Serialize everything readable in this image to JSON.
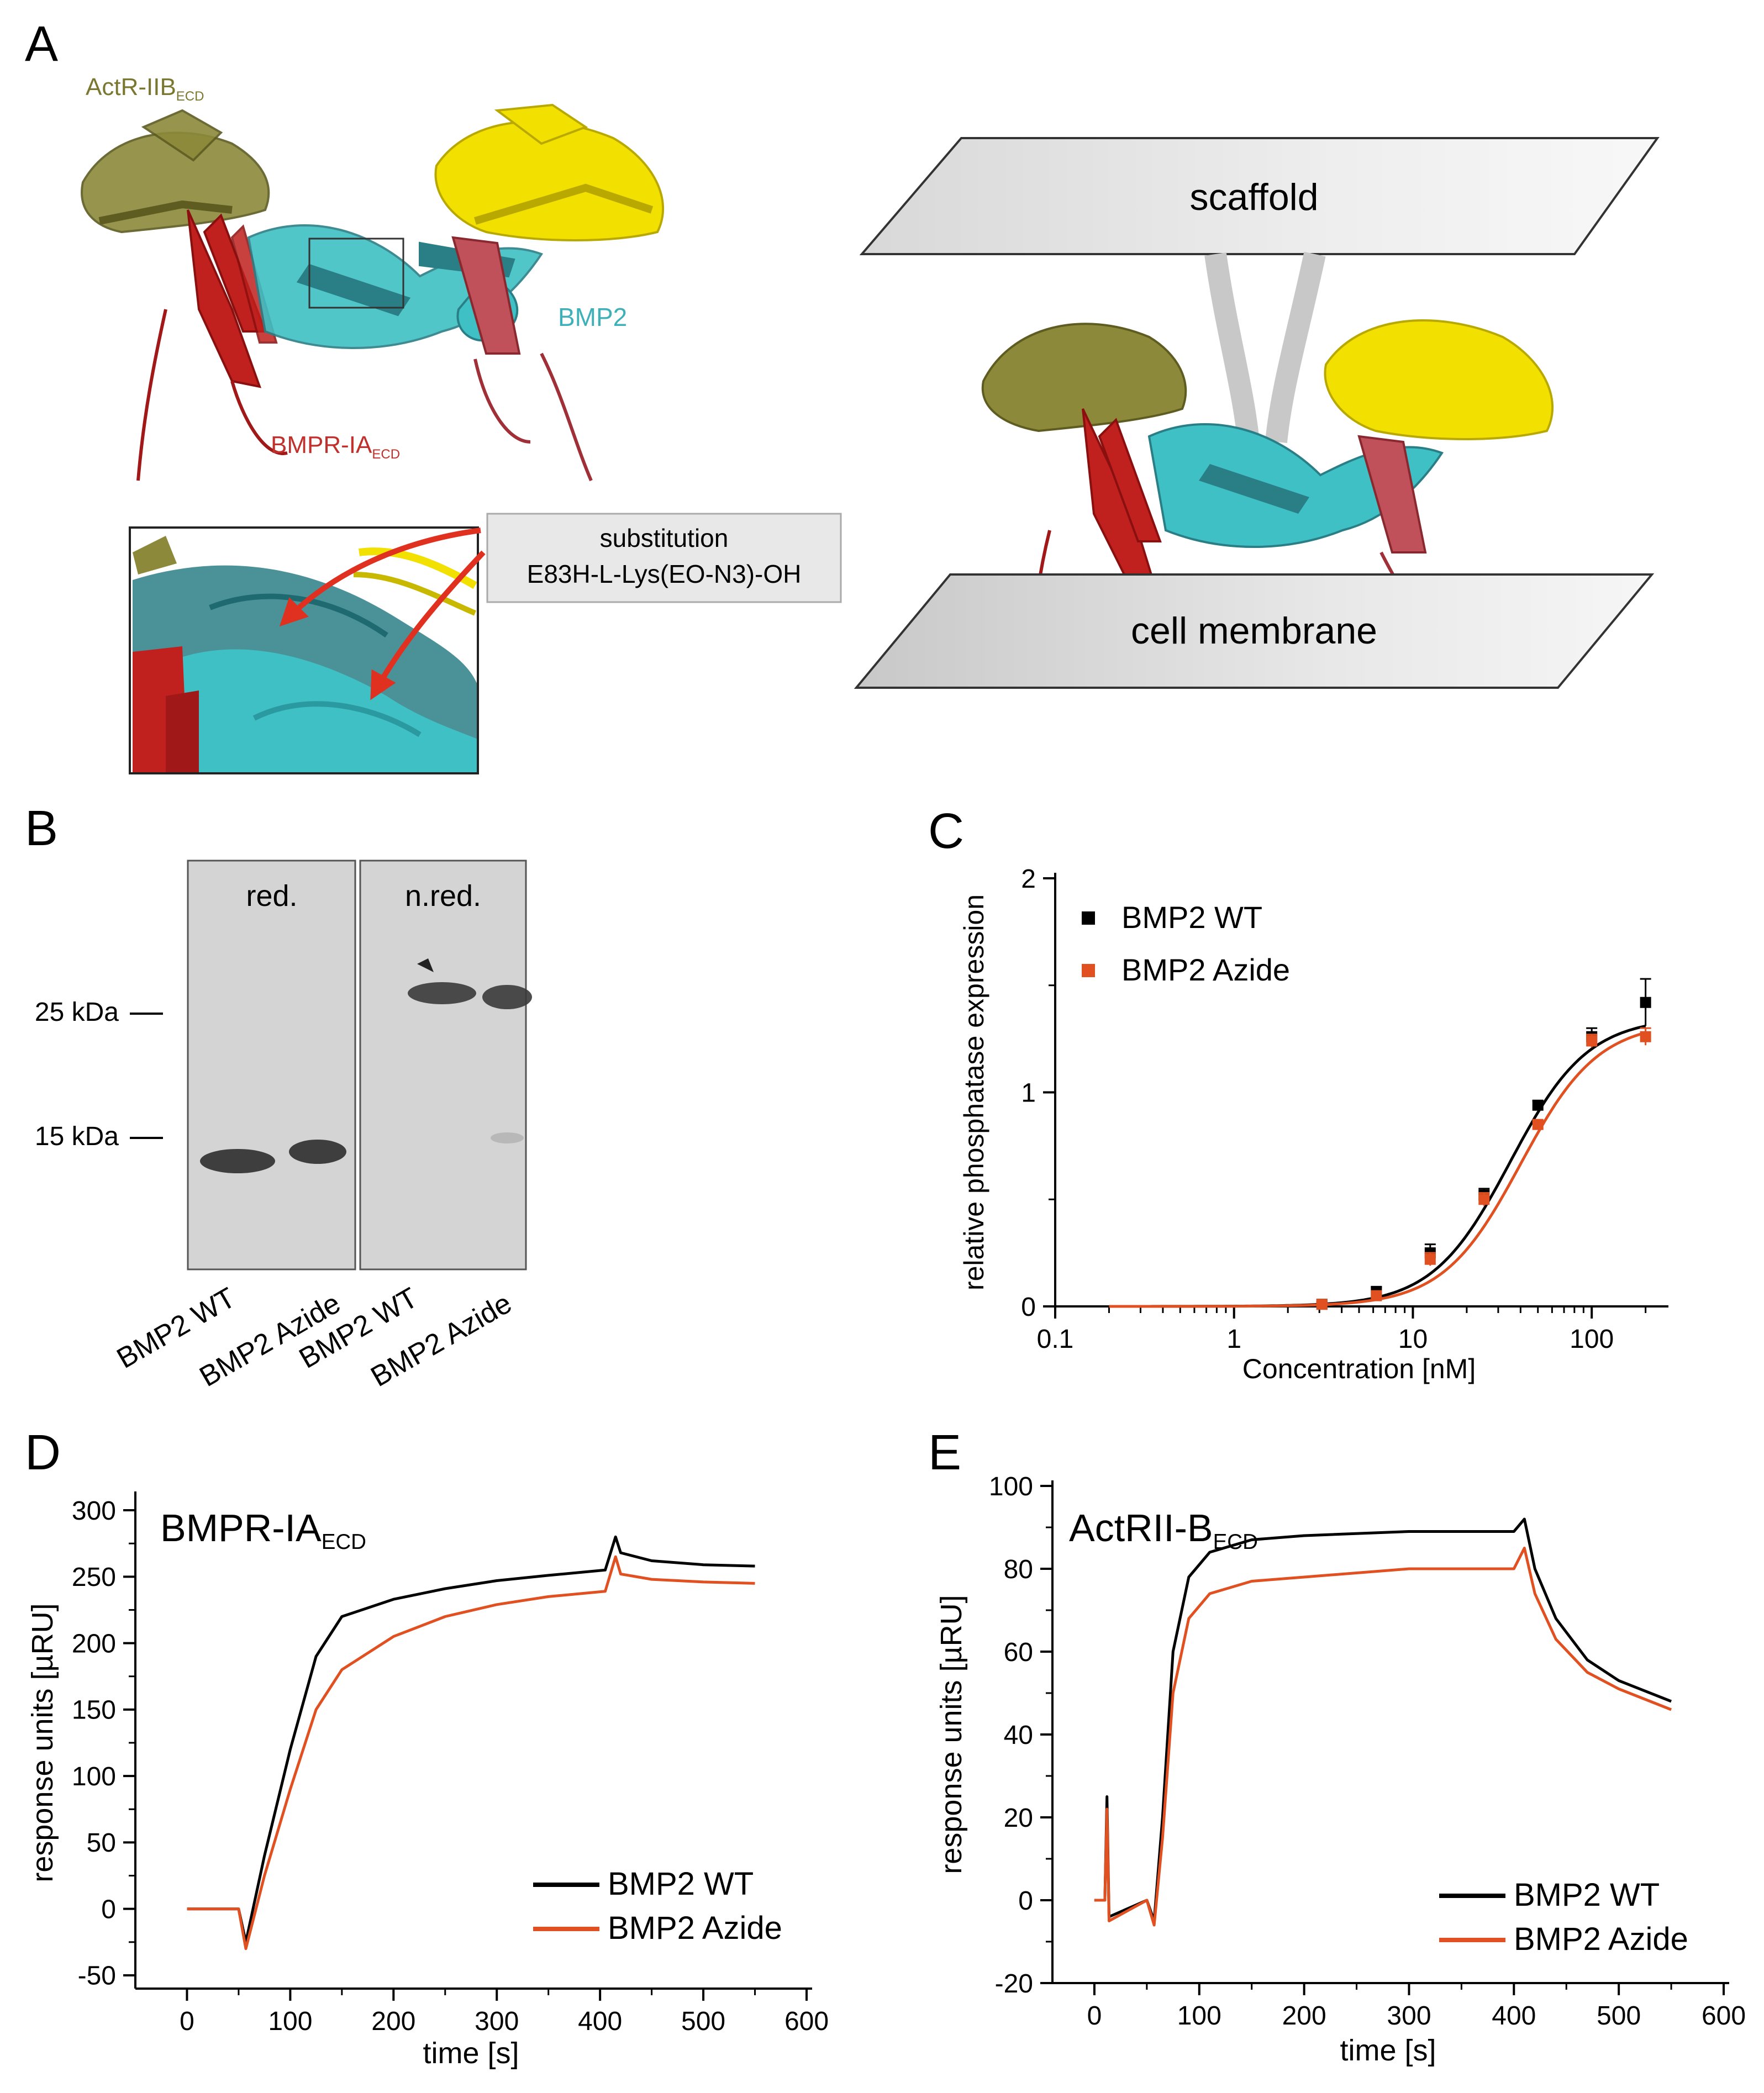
{
  "panels": {
    "A": {
      "letter": "A",
      "labels": {
        "actr_main": "ActR-IIB",
        "actr_main_sub": "ECD",
        "bmpr_main": "BMPR-IA",
        "bmpr_main_sub": "ECD",
        "bmp2": "BMP2",
        "substitution_line1": "substitution",
        "substitution_line2": "E83H-L-Lys(EO-N3)-OH",
        "scaffold": "scaffold",
        "cell_membrane": "cell membrane"
      },
      "colors": {
        "actr": "#8c8a3a",
        "bmp2": "#3fc0c4",
        "bmp2_dark": "#2a7f86",
        "bmpr": "#c0201e",
        "bmpr_light": "#c0505a",
        "partner": "#f2e000",
        "arrow": "#e03020"
      }
    },
    "B": {
      "letter": "B",
      "lane_group_labels": [
        "red.",
        "n.red."
      ],
      "mw_markers": [
        "25 kDa",
        "15 kDa"
      ],
      "lane_labels": [
        "BMP2 WT",
        "BMP2 Azide",
        "BMP2 WT",
        "BMP2 Azide"
      ]
    },
    "C": {
      "letter": "C",
      "chart_data": {
        "type": "scatter",
        "xscale": "log",
        "xlabel": "Concentration [nM]",
        "ylabel": "relative phosphatase expression",
        "xlim": [
          0.1,
          250
        ],
        "ylim": [
          0,
          2
        ],
        "xticks": [
          0.1,
          1,
          10,
          100
        ],
        "xtick_labels": [
          "0.1",
          "1",
          "10",
          "100"
        ],
        "yticks": [
          0,
          1,
          2
        ],
        "ytick_labels": [
          "0",
          "1",
          "2"
        ],
        "legend_position": "top-left",
        "series": [
          {
            "name": "BMP2 WT",
            "color": "#000000",
            "x": [
              3.1,
              6.25,
              12.5,
              25,
              50,
              100,
              200
            ],
            "y": [
              0.01,
              0.07,
              0.25,
              0.52,
              0.94,
              1.26,
              1.42
            ],
            "err": [
              0.01,
              0.02,
              0.04,
              0.03,
              0.02,
              0.04,
              0.11
            ],
            "fit": {
              "top": 1.35,
              "ec50": 35,
              "hill": 2.0
            }
          },
          {
            "name": "BMP2 Azide",
            "color": "#e05020",
            "x": [
              3.1,
              6.25,
              12.5,
              25,
              50,
              100,
              200
            ],
            "y": [
              0.01,
              0.05,
              0.22,
              0.5,
              0.85,
              1.24,
              1.26
            ],
            "err": [
              0.01,
              0.02,
              0.03,
              0.03,
              0.02,
              0.03,
              0.04
            ],
            "fit": {
              "top": 1.33,
              "ec50": 40,
              "hill": 2.0
            }
          }
        ]
      }
    },
    "D": {
      "letter": "D",
      "chart_data": {
        "type": "line",
        "title": "BMPR-IA",
        "title_sub": "ECD",
        "xlabel": "time [s]",
        "ylabel": "response units [µRU]",
        "xlim": [
          -50,
          600
        ],
        "ylim": [
          -60,
          310
        ],
        "xticks": [
          0,
          100,
          200,
          300,
          400,
          500,
          600
        ],
        "xtick_labels": [
          "0",
          "100",
          "200",
          "300",
          "400",
          "500",
          "600"
        ],
        "yticks": [
          -50,
          0,
          50,
          100,
          150,
          200,
          250,
          300
        ],
        "ytick_labels": [
          "-50",
          "0",
          "50",
          "100",
          "150",
          "200",
          "250",
          "300"
        ],
        "legend_position": "bottom-right",
        "series": [
          {
            "name": "BMP2 WT",
            "color": "#000000",
            "x": [
              0,
              50,
              57,
              75,
              100,
              125,
              150,
              200,
              250,
              300,
              350,
              405,
              415,
              420,
              450,
              500,
              550
            ],
            "y": [
              0,
              0,
              -25,
              40,
              120,
              190,
              220,
              233,
              241,
              247,
              251,
              255,
              280,
              268,
              262,
              259,
              258
            ]
          },
          {
            "name": "BMP2 Azide",
            "color": "#e05020",
            "x": [
              0,
              50,
              57,
              75,
              100,
              125,
              150,
              200,
              250,
              300,
              350,
              405,
              415,
              420,
              450,
              500,
              550
            ],
            "y": [
              0,
              0,
              -30,
              25,
              90,
              150,
              180,
              205,
              220,
              229,
              235,
              239,
              265,
              252,
              248,
              246,
              245
            ]
          }
        ]
      }
    },
    "E": {
      "letter": "E",
      "chart_data": {
        "type": "line",
        "title": "ActRII-B",
        "title_sub": "ECD",
        "xlabel": "time [s]",
        "ylabel": "response units [µRU]",
        "xlim": [
          -40,
          600
        ],
        "ylim": [
          -20,
          100
        ],
        "xticks": [
          0,
          100,
          200,
          300,
          400,
          500,
          600
        ],
        "xtick_labels": [
          "0",
          "100",
          "200",
          "300",
          "400",
          "500",
          "600"
        ],
        "yticks": [
          -20,
          0,
          20,
          40,
          60,
          80,
          100
        ],
        "ytick_labels": [
          "-20",
          "0",
          "20",
          "40",
          "60",
          "80",
          "100"
        ],
        "legend_position": "bottom-right",
        "series": [
          {
            "name": "BMP2 WT",
            "color": "#000000",
            "x": [
              0,
              10,
              12,
              14,
              50,
              57,
              65,
              75,
              90,
              110,
              150,
              200,
              300,
              400,
              410,
              420,
              440,
              470,
              500,
              550
            ],
            "y": [
              0,
              0,
              25,
              -4,
              0,
              -5,
              20,
              60,
              78,
              84,
              87,
              88,
              89,
              89,
              92,
              80,
              68,
              58,
              53,
              48
            ]
          },
          {
            "name": "BMP2 Azide",
            "color": "#e05020",
            "x": [
              0,
              10,
              12,
              14,
              50,
              57,
              65,
              75,
              90,
              110,
              150,
              200,
              300,
              400,
              410,
              420,
              440,
              470,
              500,
              550
            ],
            "y": [
              0,
              0,
              22,
              -5,
              0,
              -6,
              15,
              50,
              68,
              74,
              77,
              78,
              80,
              80,
              85,
              74,
              63,
              55,
              51,
              46
            ]
          }
        ]
      }
    }
  }
}
